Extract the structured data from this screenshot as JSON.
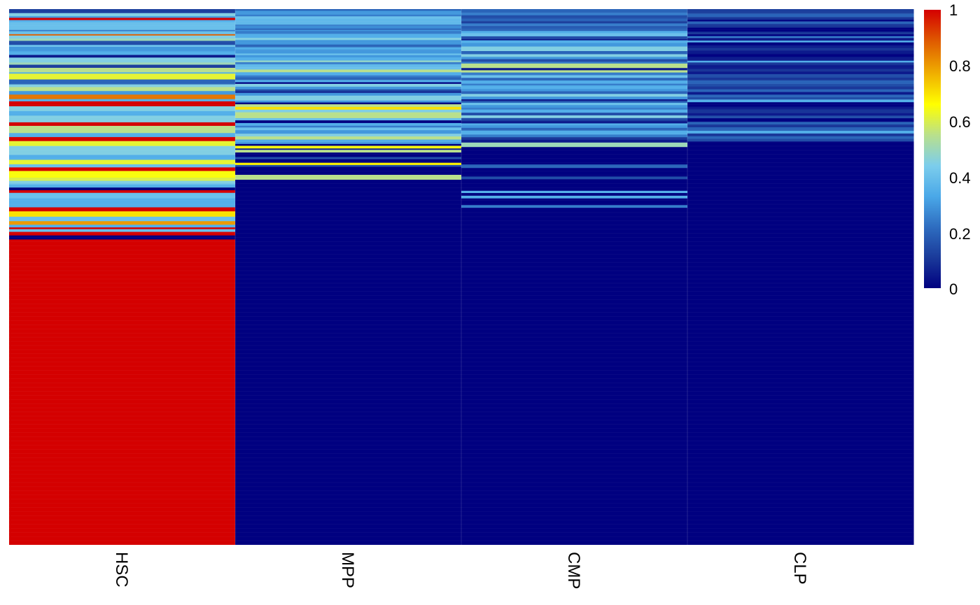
{
  "chart_data": {
    "type": "heatmap",
    "columns": [
      "HSC",
      "MPP",
      "CMP",
      "CLP"
    ],
    "n_rows": 129,
    "value_range": [
      0,
      1
    ],
    "colorscale": {
      "stops": [
        0,
        0.11,
        0.22,
        0.33,
        0.44,
        0.55,
        0.66,
        0.77,
        0.88,
        1
      ],
      "colors": [
        "#000080",
        "#1a3a9a",
        "#2e6dc0",
        "#4aa8e8",
        "#7ccdec",
        "#b9e08c",
        "#ffff00",
        "#f0b000",
        "#e06000",
        "#d40000"
      ]
    },
    "legend": {
      "position": "right",
      "ticks": [
        "0",
        "0.2",
        "0.4",
        "0.6",
        "0.8",
        "1"
      ]
    },
    "column_segments": [
      [
        [
          0.12,
          0.45
        ],
        [
          0.45,
          0.35
        ],
        [
          0.3,
          0.18
        ],
        [
          1.0,
          0.25
        ],
        [
          0.35,
          0.22
        ],
        [
          0.4,
          0.88
        ],
        [
          0.25,
          0.15
        ],
        [
          0.4,
          0.33
        ],
        [
          0.88,
          0.15
        ],
        [
          0.45,
          0.35
        ],
        [
          0.5,
          0.25
        ],
        [
          0.15,
          0.45
        ],
        [
          0.4,
          0.22
        ],
        [
          0.3,
          0.5
        ],
        [
          0.35,
          0.4
        ],
        [
          0.05,
          0.3
        ],
        [
          0.45,
          0.55
        ],
        [
          0.5,
          0.25
        ],
        [
          0.12,
          0.35
        ],
        [
          0.55,
          0.5
        ],
        [
          0.35,
          0.15
        ],
        [
          0.62,
          0.65
        ],
        [
          0.2,
          0.55
        ],
        [
          0.45,
          0.3
        ],
        [
          0.55,
          0.45
        ],
        [
          0.3,
          0.4
        ],
        [
          0.85,
          0.5
        ],
        [
          0.35,
          0.25
        ],
        [
          1.0,
          0.55
        ],
        [
          0.45,
          0.55
        ],
        [
          0.35,
          0.5
        ],
        [
          0.45,
          0.75
        ],
        [
          1.0,
          0.4
        ],
        [
          0.55,
          0.8
        ],
        [
          0.35,
          0.45
        ],
        [
          1.0,
          0.45
        ],
        [
          0.62,
          0.55
        ],
        [
          0.45,
          1.0
        ],
        [
          0.35,
          0.55
        ],
        [
          0.62,
          0.5
        ],
        [
          0.4,
          0.35
        ],
        [
          1.0,
          0.4
        ],
        [
          0.65,
          0.75
        ],
        [
          0.6,
          0.35
        ],
        [
          0.45,
          0.3
        ],
        [
          0.4,
          0.15
        ],
        [
          0.35,
          0.3
        ],
        [
          0.0,
          0.3
        ],
        [
          1.0,
          0.3
        ],
        [
          0.4,
          0.62
        ],
        [
          0.35,
          1.0
        ],
        [
          1.0,
          0.45
        ],
        [
          0.7,
          0.6
        ],
        [
          0.4,
          0.5
        ],
        [
          0.8,
          0.4
        ],
        [
          0.35,
          0.3
        ],
        [
          1.0,
          0.2
        ],
        [
          0.4,
          0.3
        ],
        [
          1.0,
          0.4
        ],
        [
          0.0,
          0.45
        ],
        [
          1.0,
          0.3
        ]
      ],
      [
        [
          0.2,
          0.18
        ],
        [
          0.3,
          0.45
        ],
        [
          0.25,
          0.18
        ],
        [
          0.4,
          0.28
        ],
        [
          0.38,
          0.65
        ],
        [
          0.25,
          0.14
        ],
        [
          0.28,
          0.3
        ],
        [
          0.2,
          0.15
        ],
        [
          0.3,
          0.12
        ],
        [
          0.25,
          0.32
        ],
        [
          0.35,
          0.45
        ],
        [
          0.45,
          0.25
        ],
        [
          0.3,
          0.5
        ],
        [
          0.2,
          0.3
        ],
        [
          0.35,
          0.25
        ],
        [
          0.3,
          0.45
        ],
        [
          0.4,
          0.18
        ],
        [
          0.3,
          0.25
        ],
        [
          0.35,
          0.35
        ],
        [
          0.48,
          0.2
        ],
        [
          0.25,
          0.22
        ],
        [
          0.38,
          0.3
        ],
        [
          0.4,
          0.3
        ],
        [
          0.55,
          0.3
        ],
        [
          0.35,
          0.35
        ],
        [
          0.25,
          0.22
        ],
        [
          0.2,
          0.3
        ],
        [
          0.35,
          0.25
        ],
        [
          0.0,
          0.18
        ],
        [
          0.45,
          0.32
        ],
        [
          0.3,
          0.3
        ],
        [
          0.15,
          0.2
        ],
        [
          0.08,
          0.2
        ],
        [
          0.3,
          0.3
        ],
        [
          0.45,
          0.55
        ],
        [
          0.3,
          0.22
        ],
        [
          0.0,
          0.2
        ],
        [
          0.55,
          0.3
        ],
        [
          0.7,
          0.3
        ],
        [
          0.45,
          0.3
        ],
        [
          0.55,
          0.65
        ],
        [
          0.4,
          0.25
        ],
        [
          0.0,
          0.3
        ],
        [
          0.35,
          0.3
        ],
        [
          0.25,
          0.2
        ],
        [
          0.4,
          0.3
        ],
        [
          0.3,
          0.4
        ],
        [
          0.45,
          0.3
        ],
        [
          0.55,
          0.35
        ],
        [
          0.35,
          0.3
        ],
        [
          0.3,
          0.2
        ],
        [
          0.0,
          0.2
        ],
        [
          0.65,
          0.3
        ],
        [
          0.05,
          0.15
        ],
        [
          0.55,
          0.3
        ],
        [
          0.0,
          0.5
        ],
        [
          0.15,
          0.25
        ],
        [
          0.0,
          0.4
        ],
        [
          0.68,
          0.25
        ],
        [
          0.15,
          0.2
        ],
        [
          0.0,
          0.9
        ],
        [
          0.55,
          0.55
        ],
        [
          0.0,
          4.6
        ]
      ],
      [
        [
          0.2,
          0.4
        ],
        [
          0.25,
          0.3
        ],
        [
          0.15,
          0.35
        ],
        [
          0.2,
          0.3
        ],
        [
          0.12,
          0.25
        ],
        [
          0.25,
          0.3
        ],
        [
          0.18,
          0.25
        ],
        [
          0.2,
          0.3
        ],
        [
          0.35,
          0.25
        ],
        [
          0.4,
          0.35
        ],
        [
          0.15,
          0.3
        ],
        [
          0.05,
          0.15
        ],
        [
          0.35,
          0.3
        ],
        [
          0.3,
          0.4
        ],
        [
          0.45,
          0.5
        ],
        [
          0.2,
          0.35
        ],
        [
          0.45,
          0.3
        ],
        [
          0.3,
          0.25
        ],
        [
          0.15,
          0.3
        ],
        [
          0.25,
          0.2
        ],
        [
          0.55,
          0.5
        ],
        [
          0.05,
          0.25
        ],
        [
          0.55,
          0.25
        ],
        [
          0.25,
          0.3
        ],
        [
          0.4,
          0.3
        ],
        [
          0.2,
          0.3
        ],
        [
          0.35,
          0.35
        ],
        [
          0.25,
          0.2
        ],
        [
          0.35,
          0.4
        ],
        [
          0.3,
          0.25
        ],
        [
          0.2,
          0.3
        ],
        [
          0.45,
          0.3
        ],
        [
          0.3,
          0.3
        ],
        [
          0.05,
          0.2
        ],
        [
          0.2,
          0.2
        ],
        [
          0.4,
          0.25
        ],
        [
          0.3,
          0.3
        ],
        [
          0.25,
          0.2
        ],
        [
          0.35,
          0.35
        ],
        [
          0.15,
          0.3
        ],
        [
          0.45,
          0.3
        ],
        [
          0.15,
          0.3
        ],
        [
          0.05,
          0.3
        ],
        [
          0.35,
          0.2
        ],
        [
          0.3,
          0.3
        ],
        [
          0.2,
          0.3
        ],
        [
          0.35,
          0.45
        ],
        [
          0.25,
          0.3
        ],
        [
          0.1,
          0.3
        ],
        [
          0.05,
          0.3
        ],
        [
          0.5,
          0.5
        ],
        [
          0.0,
          1.95
        ],
        [
          0.2,
          0.4
        ],
        [
          0.0,
          0.95
        ],
        [
          0.15,
          0.3
        ],
        [
          0.0,
          1.3
        ],
        [
          0.35,
          0.25
        ],
        [
          0.0,
          0.3
        ],
        [
          0.35,
          0.3
        ],
        [
          0.0,
          0.75
        ],
        [
          0.25,
          0.3
        ],
        [
          0.0,
          9.28
        ]
      ],
      [
        [
          0.12,
          0.5
        ],
        [
          0.2,
          0.4
        ],
        [
          0.1,
          0.3
        ],
        [
          0.0,
          0.18
        ],
        [
          0.2,
          0.3
        ],
        [
          0.1,
          0.4
        ],
        [
          0.0,
          0.45
        ],
        [
          0.1,
          0.3
        ],
        [
          0.0,
          0.2
        ],
        [
          0.25,
          0.2
        ],
        [
          0.05,
          0.3
        ],
        [
          0.35,
          0.2
        ],
        [
          0.0,
          0.3
        ],
        [
          0.05,
          0.3
        ],
        [
          0.1,
          0.3
        ],
        [
          0.05,
          0.4
        ],
        [
          0.0,
          0.3
        ],
        [
          0.05,
          0.45
        ],
        [
          0.35,
          0.2
        ],
        [
          0.1,
          0.3
        ],
        [
          0.05,
          0.4
        ],
        [
          0.1,
          0.3
        ],
        [
          0.05,
          0.3
        ],
        [
          0.15,
          0.4
        ],
        [
          0.1,
          0.3
        ],
        [
          0.2,
          0.4
        ],
        [
          0.15,
          0.3
        ],
        [
          0.1,
          0.3
        ],
        [
          0.2,
          0.3
        ],
        [
          0.05,
          0.3
        ],
        [
          0.2,
          0.3
        ],
        [
          0.15,
          0.25
        ],
        [
          0.35,
          0.3
        ],
        [
          0.0,
          0.5
        ],
        [
          0.05,
          0.3
        ],
        [
          0.1,
          0.4
        ],
        [
          0.05,
          0.3
        ],
        [
          0.15,
          0.3
        ],
        [
          0.0,
          0.4
        ],
        [
          0.2,
          0.3
        ],
        [
          0.1,
          0.3
        ],
        [
          0.2,
          0.4
        ],
        [
          0.35,
          0.3
        ],
        [
          0.1,
          0.3
        ],
        [
          0.2,
          0.3
        ],
        [
          0.15,
          0.3
        ],
        [
          0.0,
          15.98
        ]
      ]
    ]
  }
}
